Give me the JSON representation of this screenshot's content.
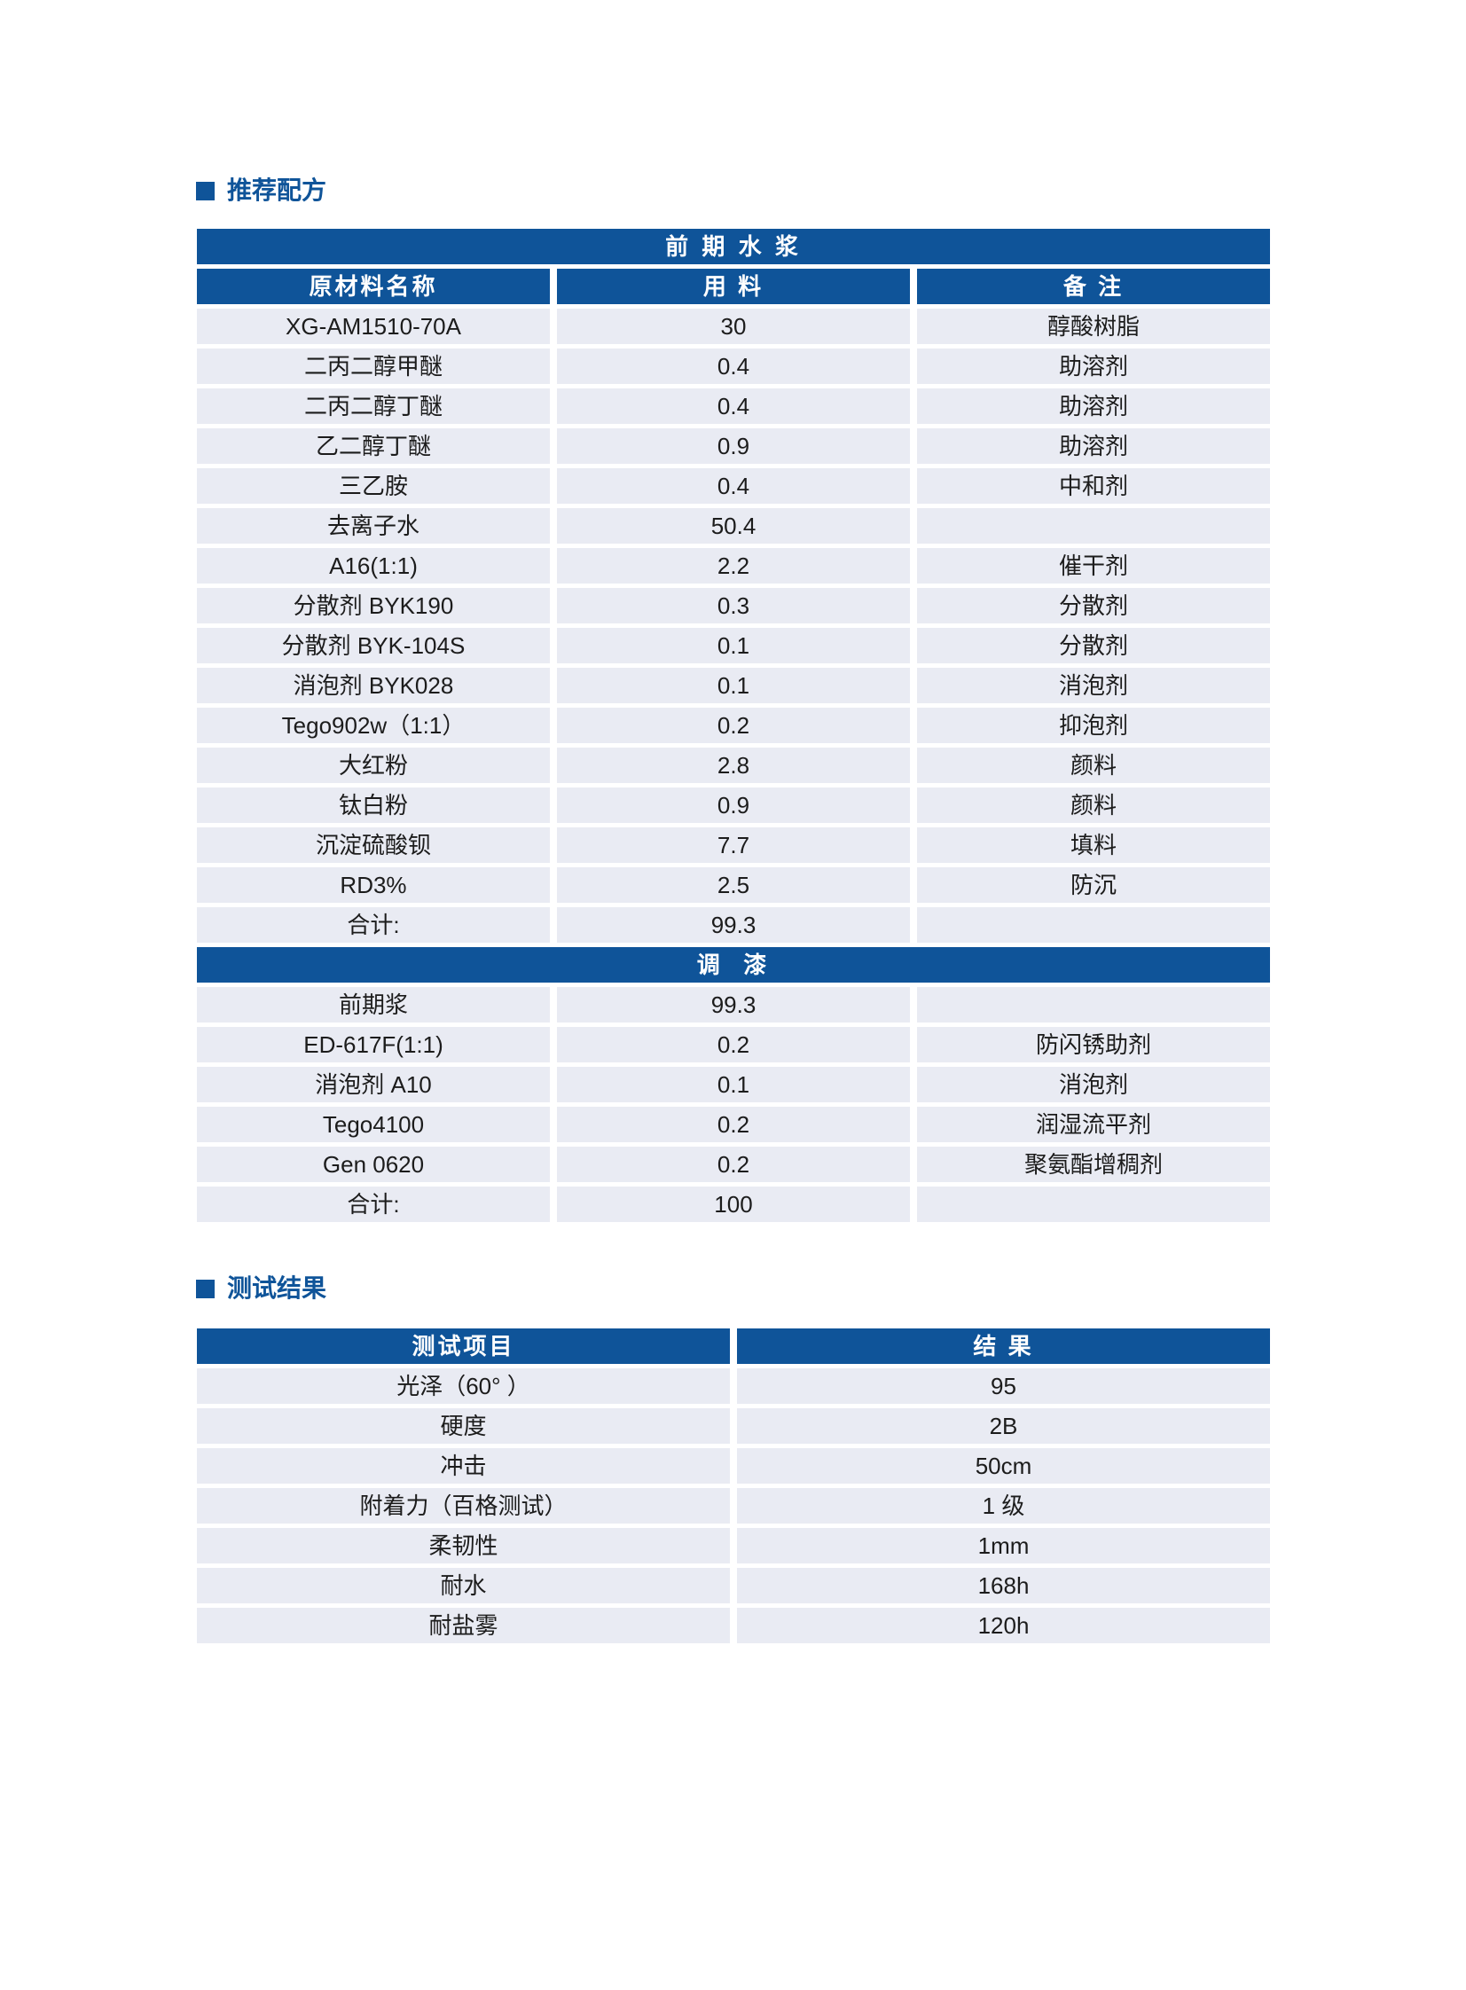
{
  "titles": {
    "formula_section": "推荐配方",
    "test_section": "测试结果"
  },
  "formula_table": {
    "phase1_header": "前 期 水 浆",
    "columns": [
      "原材料名称",
      "用 料",
      "备 注"
    ],
    "phase1_rows": [
      [
        "XG-AM1510-70A",
        "30",
        "醇酸树脂"
      ],
      [
        "二丙二醇甲醚",
        "0.4",
        "助溶剂"
      ],
      [
        "二丙二醇丁醚",
        "0.4",
        "助溶剂"
      ],
      [
        "乙二醇丁醚",
        "0.9",
        "助溶剂"
      ],
      [
        "三乙胺",
        "0.4",
        "中和剂"
      ],
      [
        "去离子水",
        "50.4",
        ""
      ],
      [
        "A16(1:1)",
        "2.2",
        "催干剂"
      ],
      [
        "分散剂 BYK190",
        "0.3",
        "分散剂"
      ],
      [
        "分散剂 BYK-104S",
        "0.1",
        "分散剂"
      ],
      [
        "消泡剂 BYK028",
        "0.1",
        "消泡剂"
      ],
      [
        "Tego902w（1:1）",
        "0.2",
        "抑泡剂"
      ],
      [
        "大红粉",
        "2.8",
        "颜料"
      ],
      [
        "钛白粉",
        "0.9",
        "颜料"
      ],
      [
        "沉淀硫酸钡",
        "7.7",
        "填料"
      ],
      [
        "RD3%",
        "2.5",
        "防沉"
      ],
      [
        "合计:",
        "99.3",
        ""
      ]
    ],
    "phase2_header": "调  漆",
    "phase2_rows": [
      [
        "前期浆",
        "99.3",
        ""
      ],
      [
        "ED-617F(1:1)",
        "0.2",
        "防闪锈助剂"
      ],
      [
        "消泡剂 A10",
        "0.1",
        "消泡剂"
      ],
      [
        "Tego4100",
        "0.2",
        "润湿流平剂"
      ],
      [
        "Gen 0620",
        "0.2",
        "聚氨酯增稠剂"
      ],
      [
        "合计:",
        "100",
        ""
      ]
    ]
  },
  "test_table": {
    "columns": [
      "测试项目",
      "结 果"
    ],
    "rows": [
      [
        "光泽（60° ）",
        "95"
      ],
      [
        "硬度",
        "2B"
      ],
      [
        "冲击",
        "50cm"
      ],
      [
        "附着力（百格测试）",
        "1 级"
      ],
      [
        "柔韧性",
        "1mm"
      ],
      [
        "耐水",
        "168h"
      ],
      [
        "耐盐雾",
        "120h"
      ]
    ]
  },
  "colors": {
    "accent_blue": "#0F5499",
    "row_bg": "#E9EBF3",
    "body_text": "#1C1C1C"
  }
}
